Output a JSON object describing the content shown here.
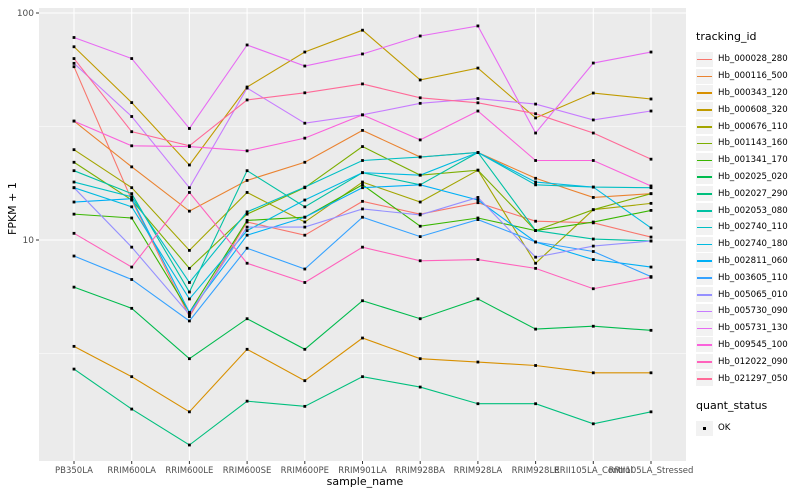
{
  "figure": {
    "y_axis": {
      "label": "FPKM + 1",
      "tick_top": "100",
      "tick_bottom": "10"
    },
    "x_axis": {
      "label": "sample_name"
    },
    "legend": {
      "tracking_title": "tracking_id",
      "quant_title": "quant_status",
      "quant_ok_label": "OK"
    },
    "colors": {
      "panel_background": "#EBEBEB",
      "gridline": "#FFFFFF",
      "axis_text": "#4D4D4D",
      "point_marker": "#000000",
      "legend_key_background": "#F2F2F2"
    }
  },
  "chart_data": {
    "type": "line",
    "title": "",
    "xlabel": "sample_name",
    "ylabel": "FPKM + 1",
    "yscale": "log10",
    "ylim": [
      1.05,
      105
    ],
    "y_major_ticks": [
      10,
      100
    ],
    "y_minor_gridlines": [
      3.162,
      31.62
    ],
    "grid": true,
    "legend_position": "right",
    "point_marker": "black-square",
    "quant_status": "OK",
    "categories": [
      "PB350LA",
      "RRIM600LA",
      "RRIM600LE",
      "RRIM600SE",
      "RRIM600PE",
      "RRIM901LA",
      "RRIM928BA",
      "RRIM928LA",
      "RRIM928LE",
      "RRII105LA_Control",
      "RRII105LA_Stressed"
    ],
    "series": [
      {
        "name": "Hb_000028_280",
        "color": "#F8766D",
        "values": [
          58,
          15,
          4.6,
          12,
          10.5,
          14.8,
          13,
          14.6,
          12.1,
          11.9,
          10.3
        ]
      },
      {
        "name": "Hb_000116_500",
        "color": "#EA8331",
        "values": [
          33.4,
          21,
          13.4,
          18.3,
          22,
          30.4,
          23.2,
          24.3,
          18.7,
          15.4,
          16
        ]
      },
      {
        "name": "Hb_000343_120",
        "color": "#D89000",
        "values": [
          3.4,
          2.5,
          1.75,
          3.3,
          2.4,
          3.7,
          3.0,
          2.9,
          2.8,
          2.6,
          2.6
        ]
      },
      {
        "name": "Hb_000608_320",
        "color": "#C09B00",
        "values": [
          71,
          40.3,
          21.4,
          47.2,
          67.3,
          84,
          50.7,
          57.2,
          34.5,
          44.4,
          41.8
        ]
      },
      {
        "name": "Hb_000676_110",
        "color": "#A3A500",
        "values": [
          25,
          17,
          9.0,
          16.2,
          12,
          18,
          14.7,
          20.3,
          7.9,
          13.6,
          14.5
        ]
      },
      {
        "name": "Hb_001143_160",
        "color": "#7CAE00",
        "values": [
          22,
          15,
          7.5,
          13,
          17,
          25.8,
          19.3,
          20.3,
          11,
          13.6,
          16
        ]
      },
      {
        "name": "Hb_001341_170",
        "color": "#39B600",
        "values": [
          13,
          12.5,
          4.8,
          12.2,
          12.6,
          17.5,
          11.5,
          12.5,
          11,
          12,
          13.5
        ]
      },
      {
        "name": "Hb_002025_020",
        "color": "#00BB4E",
        "values": [
          6.2,
          5.0,
          3.0,
          4.5,
          3.3,
          5.4,
          4.5,
          5.5,
          4.05,
          4.17,
          4.0
        ]
      },
      {
        "name": "Hb_002027_290",
        "color": "#00BF7D",
        "values": [
          2.7,
          1.8,
          1.25,
          1.95,
          1.85,
          2.5,
          2.25,
          1.9,
          1.9,
          1.55,
          1.75
        ]
      },
      {
        "name": "Hb_002053_080",
        "color": "#00C1A3",
        "values": [
          20.2,
          16,
          5.9,
          20.2,
          14,
          19.8,
          17.5,
          24.3,
          11,
          10.1,
          9.9
        ]
      },
      {
        "name": "Hb_002740_110",
        "color": "#00BFC4",
        "values": [
          18,
          15.5,
          6.5,
          13.3,
          17.1,
          22.4,
          23.2,
          24.3,
          17.5,
          17.1,
          17
        ]
      },
      {
        "name": "Hb_002740_180",
        "color": "#00BAE0",
        "values": [
          17,
          14,
          5.5,
          11,
          15,
          19.8,
          19.3,
          24.3,
          18,
          17.1,
          11.3
        ]
      },
      {
        "name": "Hb_002811_060",
        "color": "#00B0F6",
        "values": [
          14.7,
          15.2,
          4.8,
          10.5,
          12.6,
          17,
          17.5,
          15,
          9.8,
          8.2,
          7.6
        ]
      },
      {
        "name": "Hb_003605_110",
        "color": "#35A2FF",
        "values": [
          8.5,
          6.7,
          4.4,
          9.2,
          7.45,
          12.6,
          10.35,
          12.3,
          9.8,
          8.9,
          6.9
        ]
      },
      {
        "name": "Hb_005065_010",
        "color": "#9590FF",
        "values": [
          17,
          9.3,
          4.7,
          11.4,
          11.4,
          13.7,
          12.9,
          15.4,
          8.4,
          9.4,
          9.9
        ]
      },
      {
        "name": "Hb_005730_090",
        "color": "#C77CFF",
        "values": [
          60,
          35,
          17,
          46.7,
          32.7,
          35.6,
          40,
          42,
          39.7,
          33.8,
          37
        ]
      },
      {
        "name": "Hb_005731_130",
        "color": "#E76BF3",
        "values": [
          78,
          63,
          31,
          72.3,
          58.4,
          66,
          79.2,
          87.7,
          29.6,
          60.2,
          67.3
        ]
      },
      {
        "name": "Hb_009545_100",
        "color": "#FA62DB",
        "values": [
          33.4,
          26,
          25.8,
          24.7,
          28.1,
          35.6,
          27.6,
          37,
          22.4,
          22.4,
          17.3
        ]
      },
      {
        "name": "Hb_012022_090",
        "color": "#FF62BC",
        "values": [
          10.7,
          7.6,
          16.2,
          7.9,
          6.5,
          9.3,
          8.1,
          8.2,
          7.5,
          6.1,
          6.85
        ]
      },
      {
        "name": "Hb_021297_050",
        "color": "#FF6A98",
        "values": [
          63,
          30,
          26,
          41.4,
          44.5,
          48.7,
          42.3,
          40.2,
          36,
          29.6,
          22.7
        ]
      }
    ]
  }
}
